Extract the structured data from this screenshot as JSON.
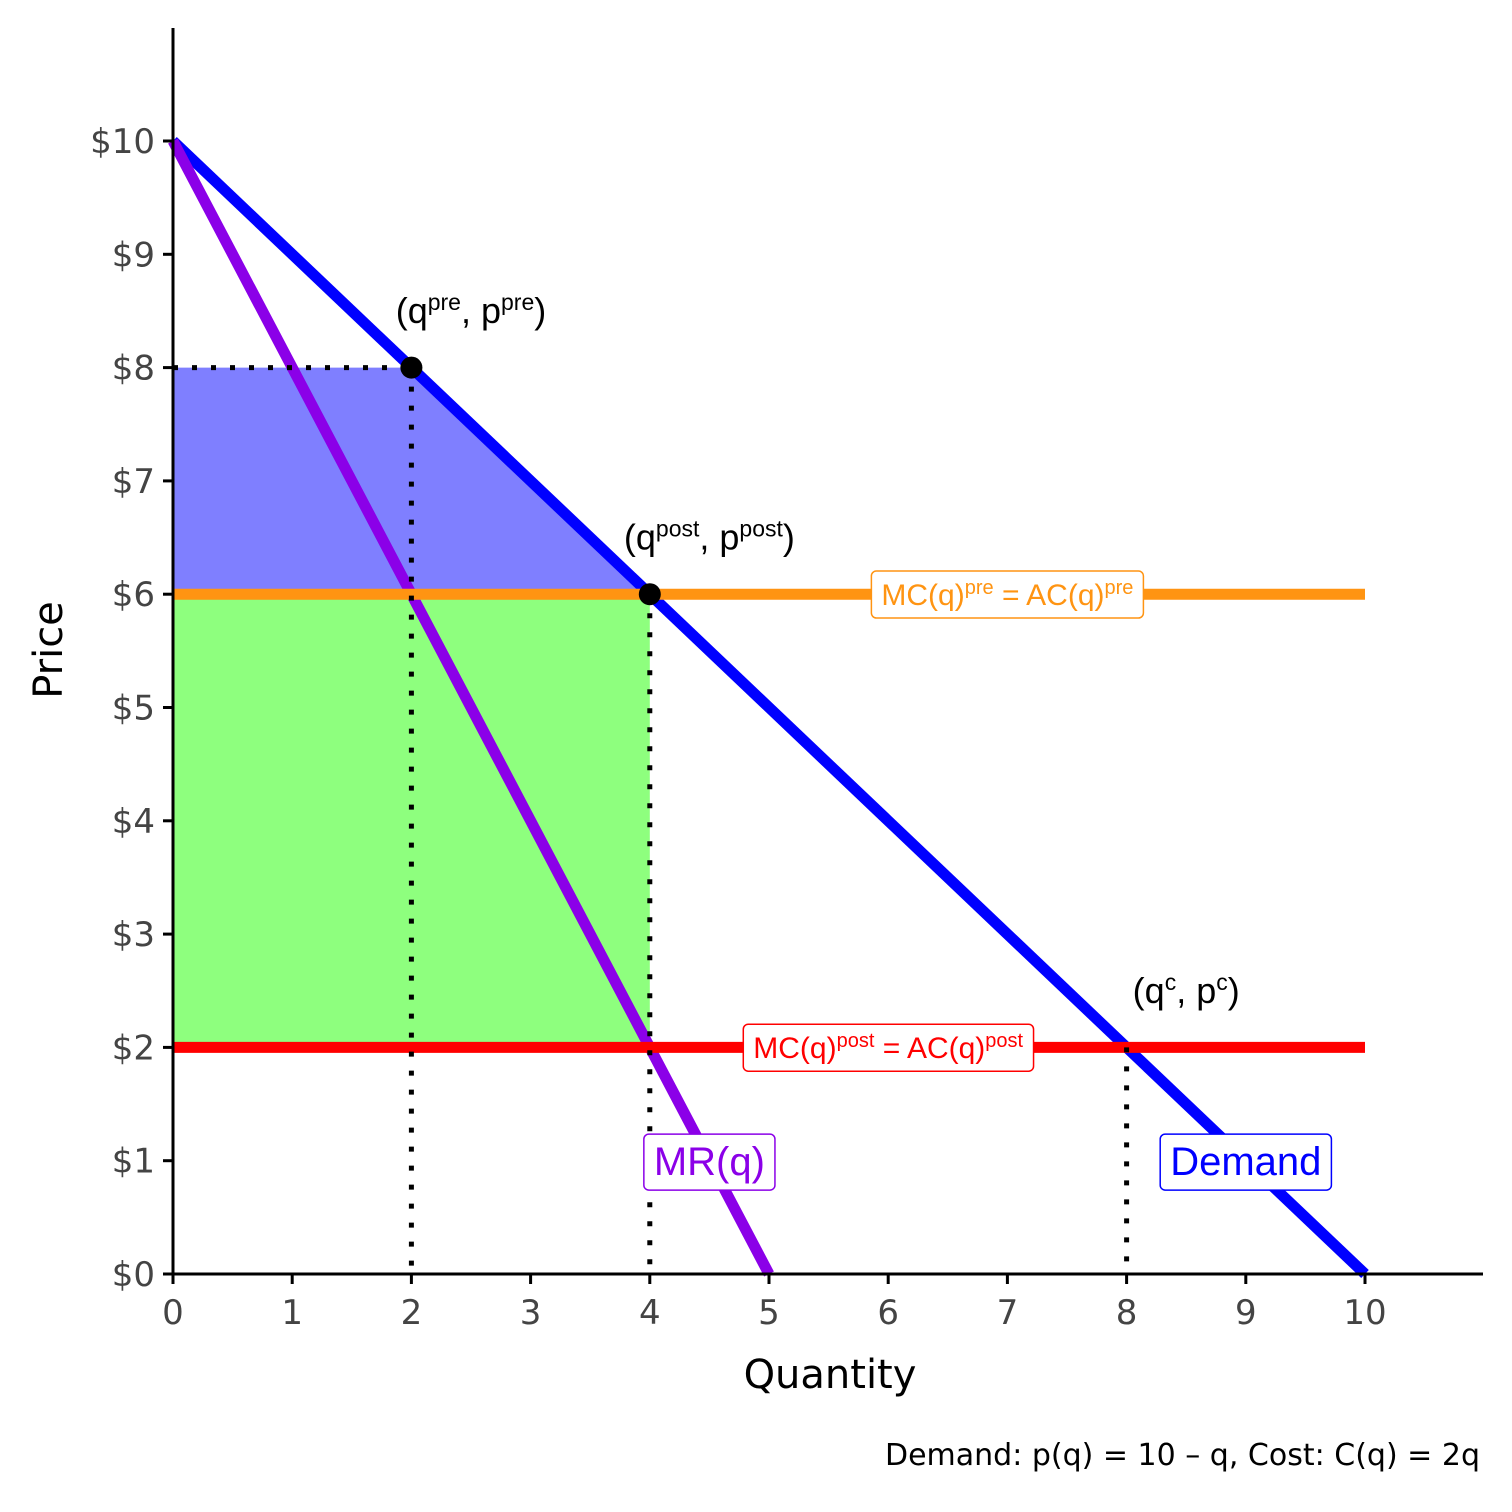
{
  "chart_data": {
    "type": "line",
    "xlabel": "Quantity",
    "ylabel": "Price",
    "caption": "Demand: p(q) = 10 – q, Cost: C(q) = 2q",
    "xlim": [
      0,
      11
    ],
    "ylim": [
      0,
      11
    ],
    "x_ticks": [
      0,
      1,
      2,
      3,
      4,
      5,
      6,
      7,
      8,
      9,
      10
    ],
    "y_ticks": [
      0,
      1,
      2,
      3,
      4,
      5,
      6,
      7,
      8,
      9,
      10
    ],
    "y_tick_labels": [
      "$0",
      "$1",
      "$2",
      "$3",
      "$4",
      "$5",
      "$6",
      "$7",
      "$8",
      "$9",
      "$10"
    ],
    "grid": false,
    "series": [
      {
        "name": "Demand",
        "color": "#0000ff",
        "x": [
          0,
          10
        ],
        "y": [
          10,
          0
        ]
      },
      {
        "name": "MR(q)",
        "color": "#8b00e8",
        "x": [
          0,
          5
        ],
        "y": [
          10,
          0
        ]
      },
      {
        "name": "MC(q)pre = AC(q)pre",
        "color": "#ff9412",
        "x": [
          0,
          10
        ],
        "y": [
          6,
          6
        ]
      },
      {
        "name": "MC(q)post = AC(q)post",
        "color": "#ff0000",
        "x": [
          0,
          10
        ],
        "y": [
          2,
          2
        ]
      }
    ],
    "shaded_regions": [
      {
        "color": "#7f7fff",
        "x": [
          0,
          2,
          4,
          0
        ],
        "y": [
          8,
          8,
          6,
          6
        ]
      },
      {
        "color": "#8eff7e",
        "x": [
          0,
          4,
          4,
          0
        ],
        "y": [
          6,
          6,
          2,
          2
        ]
      }
    ],
    "reference_lines": [
      {
        "x": [
          0,
          2
        ],
        "y": [
          8,
          8
        ]
      },
      {
        "x": [
          2,
          2
        ],
        "y": [
          8,
          0
        ]
      },
      {
        "x": [
          4,
          4
        ],
        "y": [
          6,
          0
        ]
      },
      {
        "x": [
          8,
          8
        ],
        "y": [
          2,
          0
        ]
      }
    ],
    "points": [
      {
        "x": 2,
        "y": 8
      },
      {
        "x": 4,
        "y": 6
      }
    ],
    "point_labels": [
      {
        "x": 2.5,
        "y": 8.5,
        "base": "(q",
        "sup1": "pre",
        "mid": ", p",
        "sup2": "pre",
        "end": ")"
      },
      {
        "x": 4.5,
        "y": 6.5,
        "base": "(q",
        "sup1": "post",
        "mid": ", p",
        "sup2": "post",
        "end": ")"
      },
      {
        "x": 8.5,
        "y": 2.5,
        "base": "(q",
        "sup1": "c",
        "mid": ", p",
        "sup2": "c",
        "end": ")"
      }
    ],
    "box_labels": [
      {
        "series": 2,
        "x": 7,
        "y": 6,
        "color": "#ff9412",
        "base": "MC(q)",
        "sup1": "pre",
        "mid": " = AC(q)",
        "sup2": "pre",
        "size": 30
      },
      {
        "series": 3,
        "x": 6,
        "y": 2,
        "color": "#ff0000",
        "base": "MC(q)",
        "sup1": "post",
        "mid": " = AC(q)",
        "sup2": "post",
        "size": 30
      },
      {
        "series": 1,
        "x": 4.5,
        "y": 1,
        "color": "#8b00e8",
        "base": "MR(q)",
        "size": 40
      },
      {
        "series": 0,
        "x": 9,
        "y": 1,
        "color": "#0000ff",
        "base": "Demand",
        "size": 40
      }
    ]
  }
}
